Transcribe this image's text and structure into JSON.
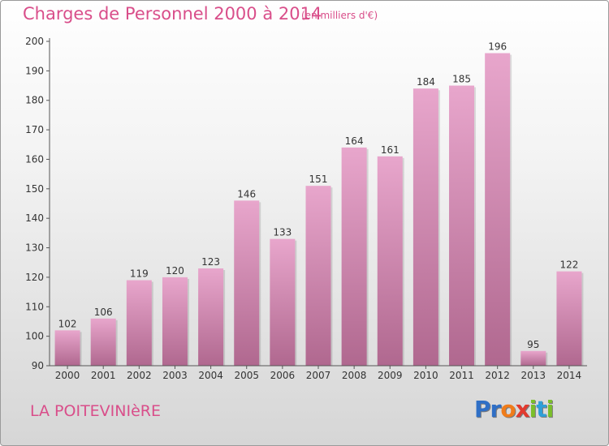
{
  "header": {
    "title": "Charges de Personnel 2000 à 2014",
    "subtitle": "(en milliers d'€)"
  },
  "footer": {
    "place": "LA POITEVINIèRE",
    "logo": [
      "P",
      "r",
      "o",
      "x",
      "i",
      "t",
      "i"
    ]
  },
  "colors": {
    "title": "#d94e8a",
    "bar_top": "#e8a6cc",
    "bar_bottom": "#b0688f",
    "logo": [
      "#2f6fc6",
      "#2f6fc6",
      "#f07c1a",
      "#e23a2f",
      "#7bbf2a",
      "#2f9fd8",
      "#7bbf2a"
    ]
  },
  "chart_data": {
    "type": "bar",
    "title": "Charges de Personnel 2000 à 2014",
    "subtitle": "(en milliers d'€)",
    "categories": [
      "2000",
      "2001",
      "2002",
      "2003",
      "2004",
      "2005",
      "2006",
      "2007",
      "2008",
      "2009",
      "2010",
      "2011",
      "2012",
      "2013",
      "2014"
    ],
    "values": [
      102,
      106,
      119,
      120,
      123,
      146,
      133,
      151,
      164,
      161,
      184,
      185,
      196,
      95,
      122
    ],
    "ylim": [
      90,
      200
    ],
    "yticks": [
      90,
      100,
      110,
      120,
      130,
      140,
      150,
      160,
      170,
      180,
      190,
      200
    ],
    "grid": false,
    "show_data_labels": true
  }
}
